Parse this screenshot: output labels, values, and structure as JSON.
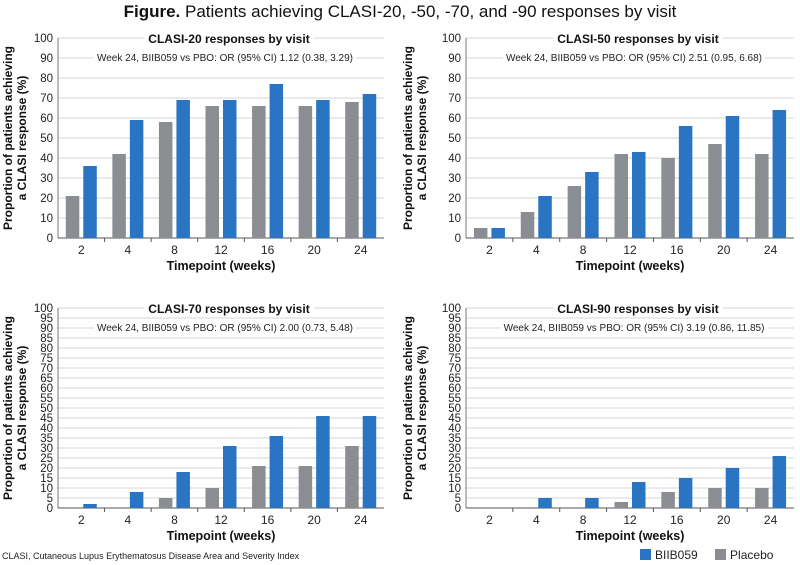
{
  "figure": {
    "title_bold": "Figure.",
    "title_rest": " Patients achieving CLASI-20, -50, -70, and -90 responses by visit",
    "footnote": "CLASI, Cutaneous Lupus Erythematosus Disease Area and Severity Index"
  },
  "colors": {
    "biib059": "#2a74c4",
    "placebo": "#8a8e92"
  },
  "legend": [
    {
      "name": "BIIB059",
      "color": "#2a74c4"
    },
    {
      "name": "Placebo",
      "color": "#8a8e92"
    }
  ],
  "chart_data": [
    {
      "type": "bar",
      "title": "CLASI-20 responses by visit",
      "annotation": "Week 24, BIIB059 vs PBO: OR (95% CI) 1.12 (0.38, 3.29)",
      "xlabel": "Timepoint (weeks)",
      "ylabel": "Proportion of patients achieving a CLASI response (%)",
      "ylabel_lines": [
        "Proportion of patients achieving",
        "a CLASI response (%)"
      ],
      "categories": [
        "2",
        "4",
        "8",
        "12",
        "16",
        "20",
        "24"
      ],
      "yticks": [
        "0",
        "10",
        "20",
        "30",
        "40",
        "50",
        "60",
        "70",
        "80",
        "90",
        "100"
      ],
      "ylim": [
        0,
        100
      ],
      "grid": true,
      "series": [
        {
          "name": "Placebo",
          "values": [
            21,
            42,
            58,
            66,
            66,
            66,
            68
          ]
        },
        {
          "name": "BIIB059",
          "values": [
            36,
            59,
            69,
            69,
            77,
            69,
            72
          ]
        }
      ]
    },
    {
      "type": "bar",
      "title": "CLASI-50 responses by visit",
      "annotation": "Week 24, BIIB059 vs PBO: OR (95% CI) 2.51 (0.95, 6.68)",
      "xlabel": "Timepoint (weeks)",
      "ylabel": "Proportion of patients achieving a CLASI response (%)",
      "ylabel_lines": [
        "Proportion of patients achieving",
        "a CLASI response (%)"
      ],
      "categories": [
        "2",
        "4",
        "8",
        "12",
        "16",
        "20",
        "24"
      ],
      "yticks": [
        "0",
        "10",
        "20",
        "30",
        "40",
        "50",
        "60",
        "70",
        "80",
        "90",
        "100"
      ],
      "ylim": [
        0,
        100
      ],
      "grid": true,
      "series": [
        {
          "name": "Placebo",
          "values": [
            5,
            13,
            26,
            42,
            40,
            47,
            42
          ]
        },
        {
          "name": "BIIB059",
          "values": [
            5,
            21,
            33,
            43,
            56,
            61,
            64
          ]
        }
      ]
    },
    {
      "type": "bar",
      "title": "CLASI-70 responses by visit",
      "annotation": "Week 24, BIIB059 vs PBO: OR (95% CI) 2.00 (0.73, 5.48)",
      "xlabel": "Timepoint (weeks)",
      "ylabel": "Proportion of patients achieving a CLASI response (%)",
      "ylabel_lines": [
        "Proportion of patients achieving",
        "a CLASI response (%)"
      ],
      "categories": [
        "2",
        "4",
        "8",
        "12",
        "16",
        "20",
        "24"
      ],
      "yticks": [
        "0",
        "5",
        "10",
        "15",
        "20",
        "25",
        "30",
        "35",
        "40",
        "45",
        "50",
        "55",
        "60",
        "65",
        "70",
        "75",
        "80",
        "85",
        "90",
        "95",
        "100"
      ],
      "ylim": [
        0,
        100
      ],
      "grid": true,
      "series": [
        {
          "name": "Placebo",
          "values": [
            0,
            0,
            5,
            10,
            21,
            21,
            31
          ]
        },
        {
          "name": "BIIB059",
          "values": [
            2,
            8,
            18,
            31,
            36,
            46,
            46
          ]
        }
      ]
    },
    {
      "type": "bar",
      "title": "CLASI-90 responses by visit",
      "annotation": "Week 24, BIIB059 vs PBO: OR (95% CI) 3.19 (0.86, 11.85)",
      "xlabel": "Timepoint (weeks)",
      "ylabel": "Proportion of patients achieving a CLASI response (%)",
      "ylabel_lines": [
        "Proportion of patients achieving",
        "a CLASI response (%)"
      ],
      "categories": [
        "2",
        "4",
        "8",
        "12",
        "16",
        "20",
        "24"
      ],
      "yticks": [
        "0",
        "5",
        "10",
        "15",
        "20",
        "25",
        "30",
        "35",
        "40",
        "45",
        "50",
        "55",
        "60",
        "65",
        "70",
        "75",
        "80",
        "85",
        "90",
        "95",
        "100"
      ],
      "ylim": [
        0,
        100
      ],
      "grid": true,
      "series": [
        {
          "name": "Placebo",
          "values": [
            0,
            0,
            0,
            3,
            8,
            10,
            10
          ]
        },
        {
          "name": "BIIB059",
          "values": [
            0,
            5,
            5,
            13,
            15,
            20,
            26
          ]
        }
      ]
    }
  ]
}
